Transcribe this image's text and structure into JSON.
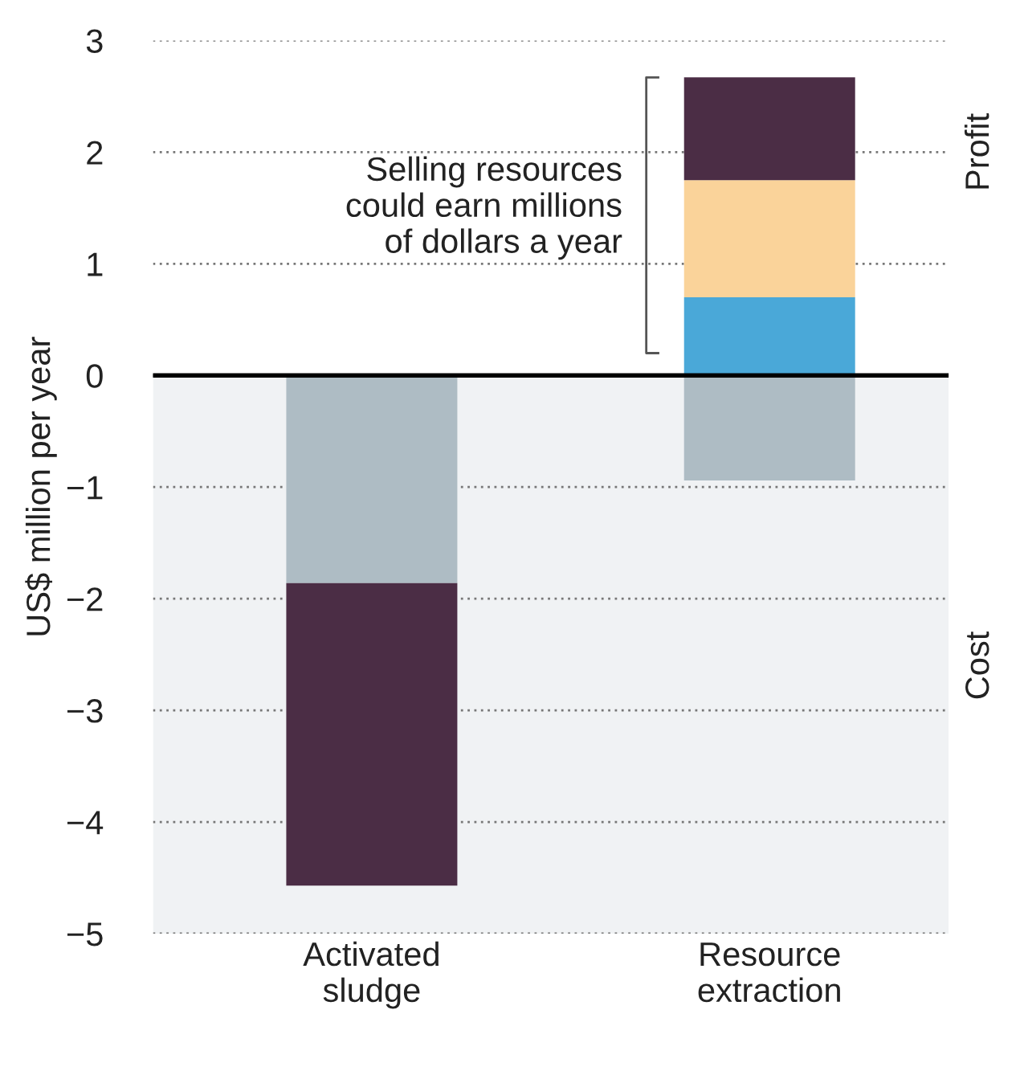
{
  "chart_data": {
    "type": "bar",
    "stacked": true,
    "ylabel": "US$ million per year",
    "categories": [
      "Activated\nsludge",
      "Resource\nextraction"
    ],
    "series": [
      {
        "color": "#aebcc4",
        "values": [
          -1.86,
          -0.94
        ]
      },
      {
        "color": "#4aa8d8",
        "values": [
          null,
          0.7
        ]
      },
      {
        "color": "#fad39a",
        "values": [
          null,
          1.05
        ]
      },
      {
        "color": "#4b2d45",
        "values": [
          -2.71,
          0.92
        ]
      }
    ],
    "ylim": [
      -5,
      3
    ],
    "yticks": [
      -5,
      -4,
      -3,
      -2,
      -1,
      0,
      1,
      2,
      3
    ],
    "grid": "y",
    "legend": false,
    "ref_lines": [
      {
        "axis": "y",
        "value": 0,
        "color": "#000000"
      }
    ],
    "bands": [
      {
        "axis": "y",
        "from": -5,
        "to": 0,
        "color": "#f0f2f4"
      }
    ],
    "annotations": [
      "Selling resources\ncould earn millions\nof dollars a year",
      "Profit",
      "Cost"
    ]
  }
}
